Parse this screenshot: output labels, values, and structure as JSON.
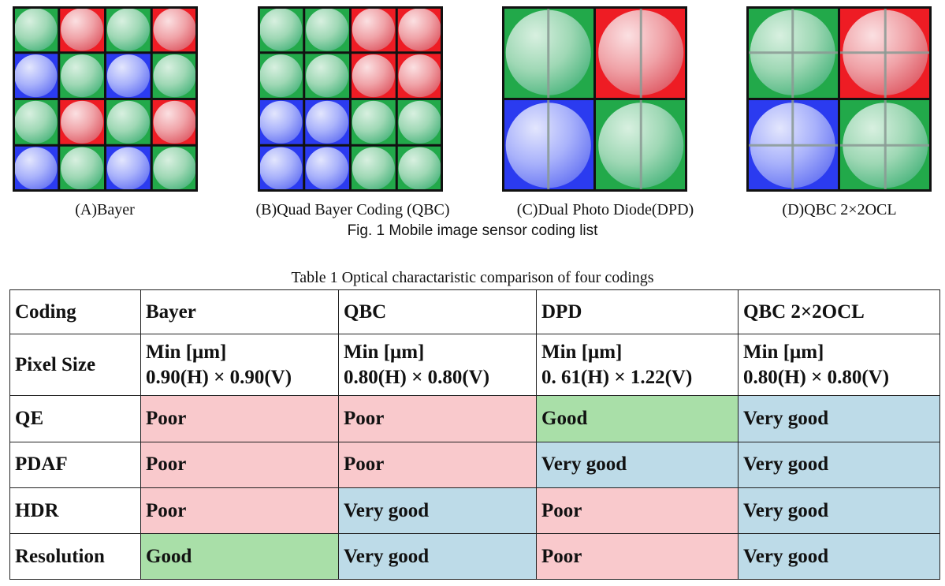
{
  "figure": {
    "panels": [
      {
        "id": "bayer",
        "caption": "(A)Bayer",
        "grid": [
          [
            "G",
            "R",
            "G",
            "R"
          ],
          [
            "B",
            "G",
            "B",
            "G"
          ],
          [
            "G",
            "R",
            "G",
            "R"
          ],
          [
            "B",
            "G",
            "B",
            "G"
          ]
        ],
        "lens": "single"
      },
      {
        "id": "qbc",
        "caption": "(B)Quad Bayer Coding (QBC)",
        "grid": [
          [
            "G",
            "G",
            "R",
            "R"
          ],
          [
            "G",
            "G",
            "R",
            "R"
          ],
          [
            "B",
            "B",
            "G",
            "G"
          ],
          [
            "B",
            "B",
            "G",
            "G"
          ]
        ],
        "lens": "single"
      },
      {
        "id": "dpd",
        "caption": "(C)Dual Photo Diode(DPD)",
        "grid": [
          [
            "G",
            "R"
          ],
          [
            "B",
            "G"
          ]
        ],
        "lens": "dual"
      },
      {
        "id": "qbc2x2",
        "caption": "(D)QBC 2×2OCL",
        "grid": [
          [
            "G",
            "R"
          ],
          [
            "B",
            "G"
          ]
        ],
        "lens": "quad"
      }
    ],
    "colors": {
      "R": "#ee1c24",
      "G": "#22a94a",
      "B": "#2b3bf0"
    },
    "caption": "Fig. 1 Mobile image sensor coding list"
  },
  "table": {
    "caption": "Table 1 Optical charactaristic comparison of four codings",
    "header": [
      "Coding",
      "Bayer",
      "QBC",
      "DPD",
      "QBC 2×2OCL"
    ],
    "pixel_size": {
      "label": "Pixel Size",
      "cells": [
        {
          "l1": "Min [μm]",
          "l2": "0.90(H) × 0.90(V)"
        },
        {
          "l1": "Min [μm]",
          "l2": "0.80(H) × 0.80(V)"
        },
        {
          "l1": "Min [μm]",
          "l2": "0. 61(H) × 1.22(V)"
        },
        {
          "l1": "Min [μm]",
          "l2": "0.80(H) × 0.80(V)"
        }
      ]
    },
    "rows": [
      {
        "label": "QE",
        "cells": [
          "Poor",
          "Poor",
          "Good",
          "Very good"
        ]
      },
      {
        "label": "PDAF",
        "cells": [
          "Poor",
          "Poor",
          "Very good",
          "Very good"
        ]
      },
      {
        "label": "HDR",
        "cells": [
          "Poor",
          "Very good",
          "Poor",
          "Very good"
        ]
      },
      {
        "label": "Resolution",
        "cells": [
          "Good",
          "Very good",
          "Poor",
          "Very good"
        ]
      }
    ],
    "rating_colors": {
      "Poor": "#f9c9cc",
      "Good": "#a9dfa8",
      "Very good": "#bddbe8"
    }
  }
}
